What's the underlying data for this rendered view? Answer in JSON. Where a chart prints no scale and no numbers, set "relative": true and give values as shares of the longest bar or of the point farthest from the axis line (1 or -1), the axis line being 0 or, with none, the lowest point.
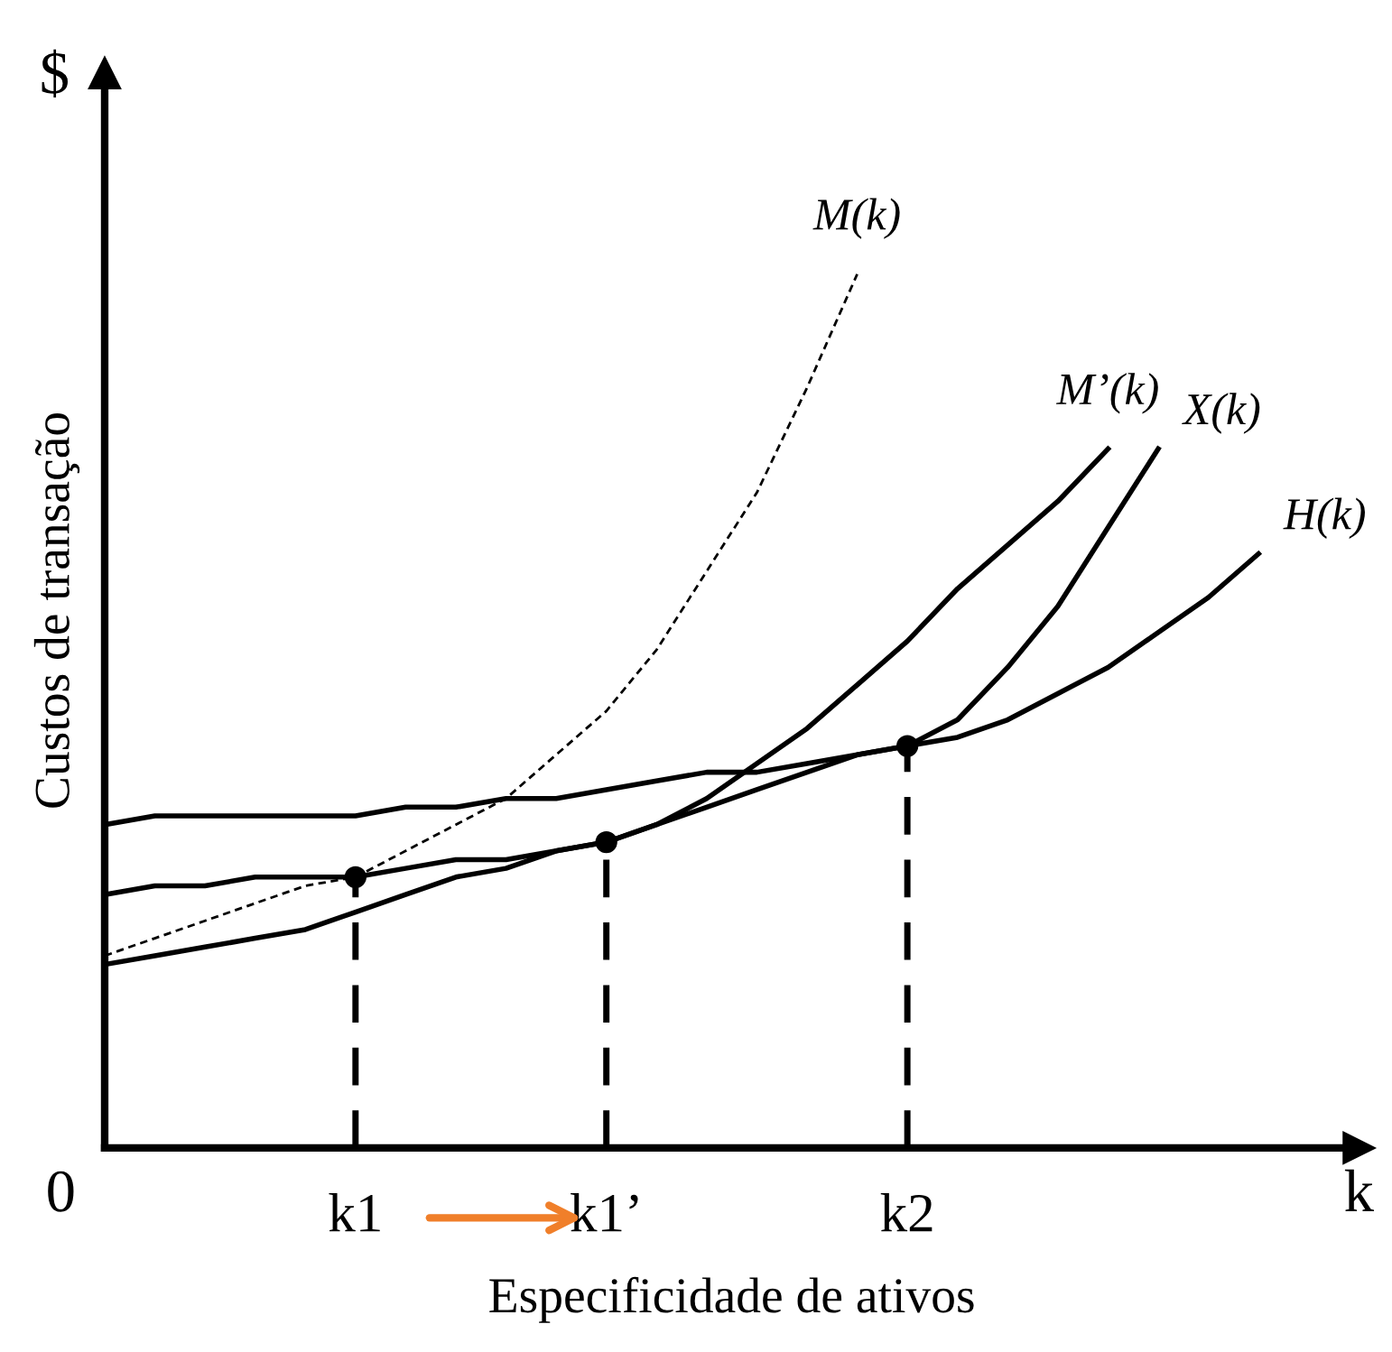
{
  "chart_data": {
    "type": "line",
    "relative": true,
    "xlabel": "k",
    "ylabel": "Custos de transação",
    "categories": [
      null,
      null,
      null,
      null,
      null,
      "k1",
      null,
      null,
      null,
      null,
      "k1’",
      null,
      null,
      null,
      null,
      null,
      "k2",
      null,
      null,
      null,
      null,
      null,
      null,
      null,
      null,
      null
    ],
    "annotations": [
      "$",
      "0",
      "Especificidade de ativos"
    ],
    "series": [
      {
        "name": "M(k)",
        "color": "#000000",
        "line_style": "dotted",
        "values": [
          0.22,
          0.24,
          0.26,
          0.28,
          0.3,
          0.31,
          0.34,
          0.37,
          0.4,
          0.45,
          0.5,
          0.57,
          0.66,
          0.75,
          0.87,
          1.0,
          null,
          null,
          null,
          null,
          null,
          null,
          null,
          null,
          null,
          null
        ]
      },
      {
        "name": "M’(k)",
        "color": "#000000",
        "values": [
          0.21,
          0.22,
          0.23,
          0.24,
          0.25,
          0.27,
          0.29,
          0.31,
          0.32,
          0.34,
          0.35,
          0.37,
          0.4,
          0.44,
          0.48,
          0.53,
          0.58,
          0.64,
          0.69,
          0.74,
          0.8,
          null,
          null,
          null,
          null,
          null
        ]
      },
      {
        "name": "X(k)",
        "color": "#000000",
        "values": [
          0.29,
          0.3,
          0.3,
          0.31,
          0.31,
          0.31,
          0.32,
          0.33,
          0.33,
          0.34,
          0.35,
          0.37,
          0.39,
          0.41,
          0.43,
          0.45,
          0.46,
          0.49,
          0.55,
          0.62,
          0.71,
          0.8,
          null,
          null,
          null,
          null
        ]
      },
      {
        "name": "H(k)",
        "color": "#000000",
        "values": [
          0.37,
          0.38,
          0.38,
          0.38,
          0.38,
          0.38,
          0.39,
          0.39,
          0.4,
          0.4,
          0.41,
          0.42,
          0.43,
          0.43,
          0.44,
          0.45,
          0.46,
          0.47,
          0.49,
          0.52,
          0.55,
          0.59,
          0.63,
          0.68,
          null,
          null
        ]
      },
      {
        "type": "scatter",
        "color": "#000000",
        "marker": "circle",
        "x": [
          "k1",
          "k1’",
          "k2"
        ],
        "values": [
          0.31,
          0.35,
          0.46
        ]
      },
      {
        "color": "#000000",
        "line_style": "dashed",
        "x": [
          "k1",
          "k1"
        ],
        "values": [
          0,
          0.31
        ]
      },
      {
        "color": "#000000",
        "line_style": "dashed",
        "x": [
          "k1’",
          "k1’"
        ],
        "values": [
          0,
          0.35
        ]
      },
      {
        "color": "#000000",
        "line_style": "dashed",
        "x": [
          "k2",
          "k2"
        ],
        "values": [
          0,
          0.46
        ]
      }
    ]
  }
}
